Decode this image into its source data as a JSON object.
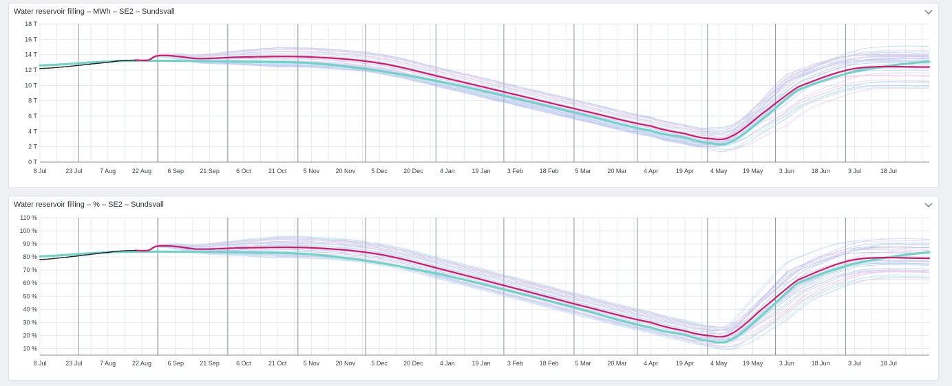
{
  "panels": [
    {
      "title": "Water reservoir filling – MWh – SE2 – Sundsvall",
      "icon": "chevron-down-icon"
    },
    {
      "title": "Water reservoir filling – % – SE2 – Sundsvall",
      "icon": "chevron-down-icon"
    }
  ],
  "colors": {
    "forecast_main": "#d11a6e",
    "normal_mean": "#6fd3c8",
    "actual": "#222222",
    "scenario_palette": [
      "#8fb8f0",
      "#b9a8ec",
      "#f0a8dc",
      "#93dfe0",
      "#7fa6e6",
      "#c9b3f3"
    ],
    "grid": "#e6e9ee",
    "month_line": "#8b9099"
  },
  "chart_data": [
    {
      "type": "line",
      "x_ticks": [
        "8 Jul",
        "23 Jul",
        "7 Aug",
        "22 Aug",
        "6 Sep",
        "21 Sep",
        "6 Oct",
        "21 Oct",
        "5 Nov",
        "20 Nov",
        "5 Dec",
        "20 Dec",
        "4 Jan",
        "19 Jan",
        "3 Feb",
        "18 Feb",
        "5 Mar",
        "20 Mar",
        "4 Apr",
        "19 Apr",
        "4 May",
        "19 May",
        "3 Jun",
        "18 Jun",
        "3 Jul",
        "18 Jul"
      ],
      "y_ticks": [
        "0 T",
        "2 T",
        "4 T",
        "6 T",
        "8 T",
        "10 T",
        "12 T",
        "14 T",
        "16 T",
        "18 T"
      ],
      "ylim": [
        0,
        18
      ],
      "xlim_days": [
        0,
        393
      ],
      "grid": true,
      "actual": {
        "x_days": [
          0,
          10,
          20,
          30,
          35,
          42
        ],
        "y": [
          12.2,
          12.4,
          12.7,
          13.0,
          13.2,
          13.3
        ]
      },
      "series": [
        {
          "role": "normal_mean",
          "x_days": [
            0,
            30,
            42,
            60,
            90,
            120,
            150,
            180,
            210,
            240,
            270,
            285,
            295,
            305,
            320,
            335,
            360,
            393
          ],
          "y": [
            12.6,
            13.1,
            13.2,
            13.2,
            13.1,
            12.9,
            11.9,
            10.3,
            8.3,
            6.2,
            4.1,
            3.2,
            2.5,
            2.6,
            5.8,
            9.4,
            11.8,
            13.1
          ]
        },
        {
          "role": "forecast_main",
          "x_days": [
            42,
            48,
            51,
            55,
            60,
            70,
            90,
            120,
            150,
            180,
            210,
            240,
            270,
            285,
            295,
            305,
            320,
            335,
            360,
            393
          ],
          "y": [
            13.3,
            13.3,
            13.8,
            13.9,
            13.8,
            13.5,
            13.7,
            13.7,
            12.9,
            10.9,
            8.8,
            6.7,
            4.7,
            3.7,
            3.1,
            3.3,
            6.5,
            9.8,
            12.2,
            12.4
          ]
        }
      ]
    },
    {
      "type": "line",
      "x_ticks": [
        "8 Jul",
        "23 Jul",
        "7 Aug",
        "22 Aug",
        "6 Sep",
        "21 Sep",
        "6 Oct",
        "21 Oct",
        "5 Nov",
        "20 Nov",
        "5 Dec",
        "20 Dec",
        "4 Jan",
        "19 Jan",
        "3 Feb",
        "18 Feb",
        "5 Mar",
        "20 Mar",
        "4 Apr",
        "19 Apr",
        "4 May",
        "19 May",
        "3 Jun",
        "18 Jun",
        "3 Jul",
        "18 Jul"
      ],
      "y_ticks": [
        "10 %",
        "20 %",
        "30 %",
        "40 %",
        "50 %",
        "60 %",
        "70 %",
        "80 %",
        "90 %",
        "100 %",
        "110 %"
      ],
      "ylim": [
        5,
        110
      ],
      "xlim_days": [
        0,
        393
      ],
      "grid": true,
      "actual": {
        "x_days": [
          0,
          10,
          20,
          30,
          35,
          42
        ],
        "y": [
          78,
          79.5,
          81.5,
          83.5,
          84.5,
          85
        ]
      },
      "series": [
        {
          "role": "normal_mean",
          "x_days": [
            0,
            30,
            42,
            60,
            90,
            120,
            150,
            180,
            210,
            240,
            270,
            285,
            295,
            305,
            320,
            335,
            360,
            393
          ],
          "y": [
            80.5,
            83.5,
            84,
            84,
            83.5,
            82,
            75.5,
            65.5,
            53,
            39.5,
            26,
            20.5,
            16,
            16.5,
            37,
            60,
            75,
            83.5
          ]
        },
        {
          "role": "forecast_main",
          "x_days": [
            42,
            48,
            51,
            55,
            60,
            70,
            90,
            120,
            150,
            180,
            210,
            240,
            270,
            285,
            295,
            305,
            320,
            335,
            360,
            393
          ],
          "y": [
            85,
            85,
            88,
            88.5,
            88,
            86,
            87,
            87,
            82,
            69.5,
            56,
            42.5,
            30,
            23.5,
            20,
            21,
            41.5,
            62.5,
            78,
            79
          ]
        }
      ]
    }
  ]
}
